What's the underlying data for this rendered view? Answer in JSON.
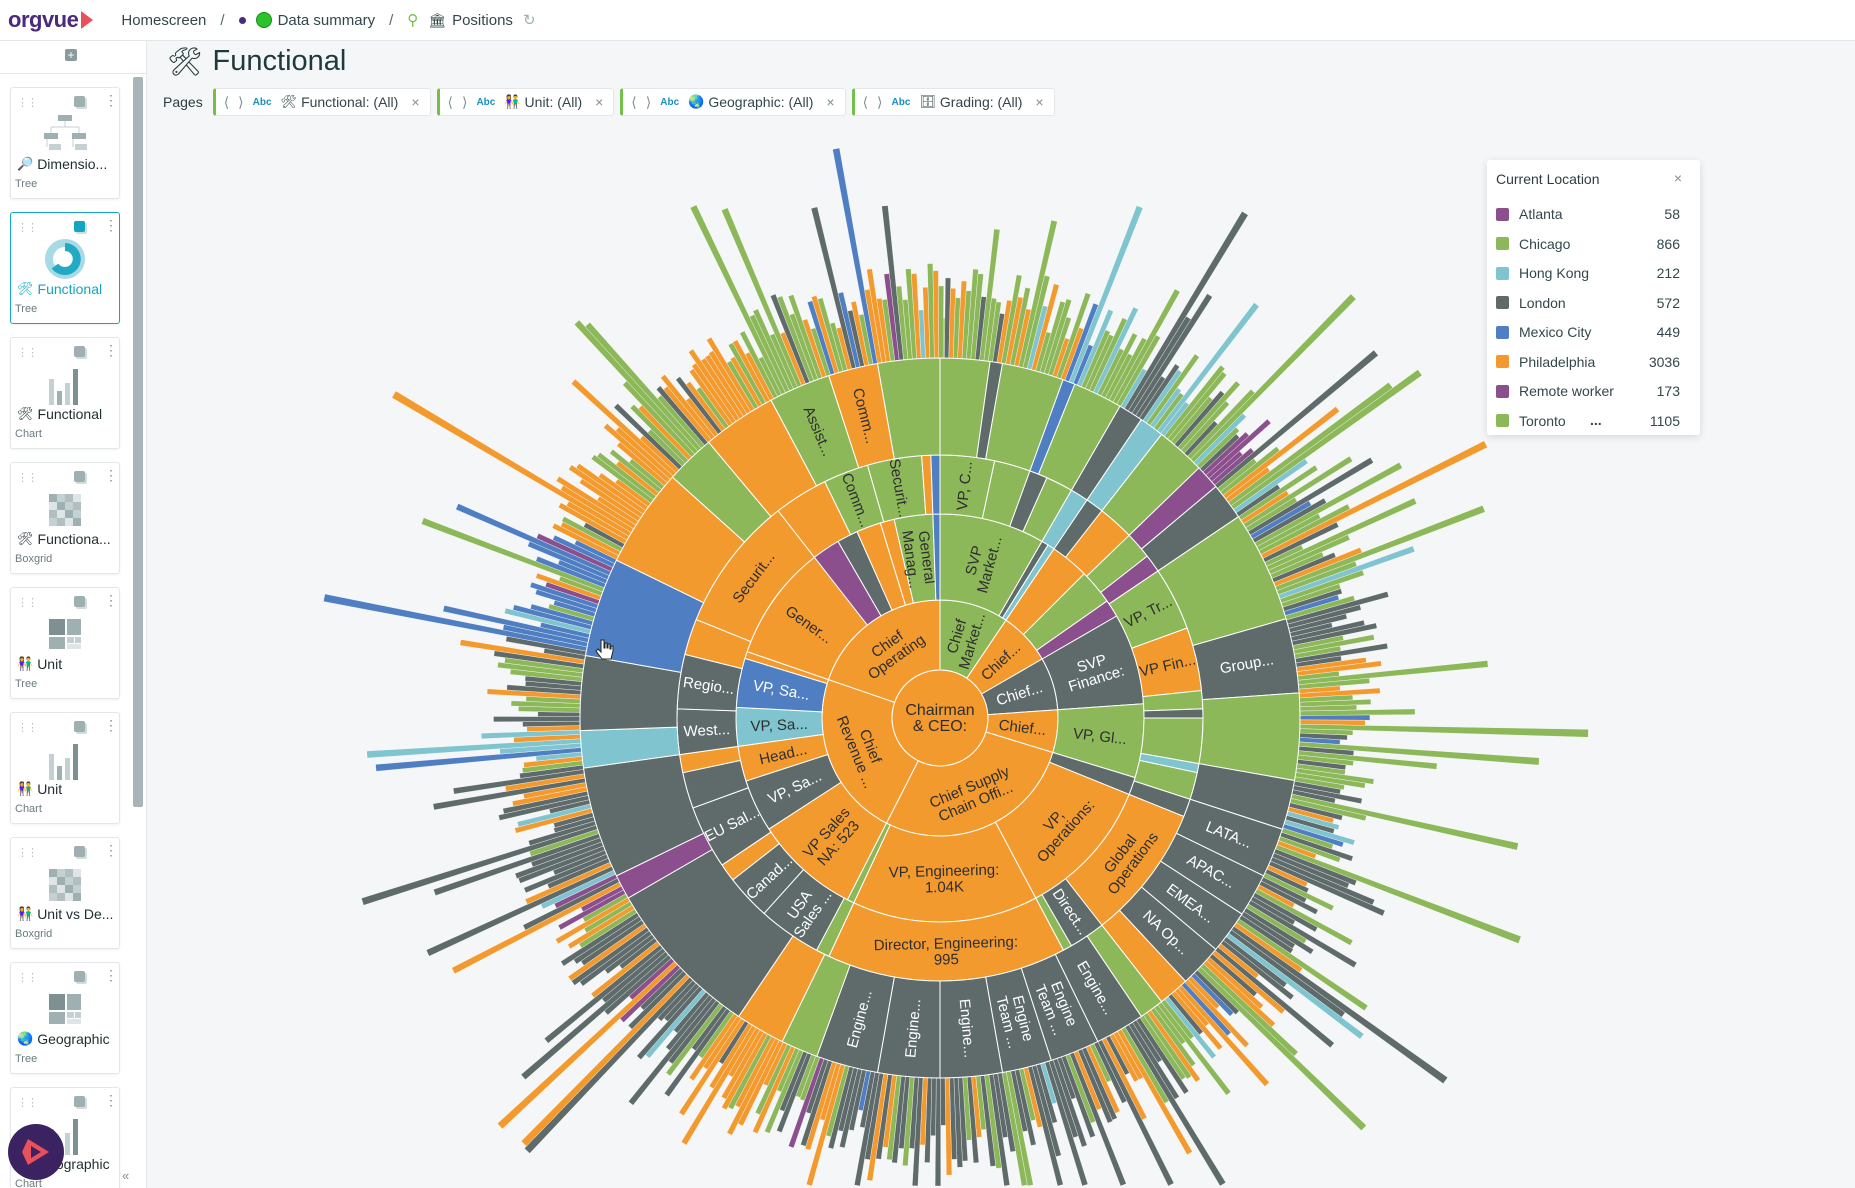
{
  "topbar": {
    "brand": "orgvue",
    "breadcrumbs": [
      "Homescreen",
      "Data summary",
      "Positions"
    ]
  },
  "sidebar": {
    "cards": [
      {
        "title": "Dimensio...",
        "type": "Tree",
        "icon": "magnifier-icon",
        "thumb": "tree",
        "selected": false
      },
      {
        "title": "Functional",
        "type": "Tree",
        "icon": "tools-icon",
        "thumb": "sunburst",
        "selected": true
      },
      {
        "title": "Functional",
        "type": "Chart",
        "icon": "tools-icon",
        "thumb": "bars",
        "selected": false
      },
      {
        "title": "Functiona...",
        "type": "Boxgrid",
        "icon": "tools-icon",
        "thumb": "boxgrid",
        "selected": false
      },
      {
        "title": "Unit",
        "type": "Tree",
        "icon": "people-icon",
        "thumb": "blocks",
        "selected": false
      },
      {
        "title": "Unit",
        "type": "Chart",
        "icon": "people-icon",
        "thumb": "bars",
        "selected": false
      },
      {
        "title": "Unit vs De...",
        "type": "Boxgrid",
        "icon": "people-icon",
        "thumb": "boxgrid",
        "selected": false
      },
      {
        "title": "Geographic",
        "type": "Tree",
        "icon": "globe-icon",
        "thumb": "blocks",
        "selected": false
      },
      {
        "title": "Geographic",
        "type": "Chart",
        "icon": "globe-icon",
        "thumb": "bars",
        "selected": false
      }
    ]
  },
  "page": {
    "title": "Functional",
    "pages_label": "Pages",
    "filters": [
      {
        "type_badge": "Abc",
        "label": "Functional: (All)",
        "icon": "tools-icon"
      },
      {
        "type_badge": "Abc",
        "label": "Unit: (All)",
        "icon": "people-icon"
      },
      {
        "type_badge": "Abc",
        "label": "Geographic: (All)",
        "icon": "globe-icon"
      },
      {
        "type_badge": "Abc",
        "label": "Grading: (All)",
        "icon": "grading-icon"
      }
    ]
  },
  "legend": {
    "title": "Current Location",
    "more": "...",
    "items": [
      {
        "name": "Atlanta",
        "count": "58",
        "color": "#8b4f8e"
      },
      {
        "name": "Chicago",
        "count": "866",
        "color": "#8db85a"
      },
      {
        "name": "Hong Kong",
        "count": "212",
        "color": "#80c4cf"
      },
      {
        "name": "London",
        "count": "572",
        "color": "#5f6b6b"
      },
      {
        "name": "Mexico City",
        "count": "449",
        "color": "#4f7fc2"
      },
      {
        "name": "Philadelphia",
        "count": "3036",
        "color": "#f39a2f"
      },
      {
        "name": "Remote worker",
        "count": "173",
        "color": "#8b4f8e"
      },
      {
        "name": "Toronto",
        "count": "1105",
        "color": "#8db85a"
      }
    ]
  },
  "chart_data": {
    "type": "sunburst",
    "color_by": "Current Location",
    "rings": [
      {
        "segments": [
          {
            "label": [
              "Chairman",
              "& CEO:"
            ],
            "loc": "Philadelphia",
            "share": 360
          }
        ]
      },
      {
        "segments": [
          {
            "label": [
              "Chief",
              "Market..."
            ],
            "loc": "Chicago",
            "share": 34
          },
          {
            "label": [
              "Chief..."
            ],
            "loc": "Philadelphia",
            "share": 26
          },
          {
            "label": [
              "Chief..."
            ],
            "loc": "London",
            "share": 26
          },
          {
            "label": [
              "Chief..."
            ],
            "loc": "Philadelphia",
            "share": 21
          },
          {
            "label": [
              "Chief Supply",
              "Chain Offi..."
            ],
            "loc": "Philadelphia",
            "share": 100
          },
          {
            "label": [
              "Chief",
              "Revenue ..."
            ],
            "loc": "Philadelphia",
            "share": 82
          },
          {
            "label": [
              "Chief",
              "Operating"
            ],
            "loc": "Philadelphia",
            "share": 71
          }
        ]
      },
      {
        "segments": [
          {
            "label": [
              "SVP",
              "Market..."
            ],
            "loc": "Chicago",
            "share": 30
          },
          {
            "label": [],
            "loc": "London",
            "share": 2
          },
          {
            "label": [],
            "loc": "Hong Kong",
            "share": 2
          },
          {
            "label": [],
            "loc": "Philadelphia",
            "share": 11
          },
          {
            "label": [],
            "loc": "Chicago",
            "share": 10
          },
          {
            "label": [],
            "loc": "Atlanta",
            "share": 5
          },
          {
            "label": [
              "SVP",
              "Finance:"
            ],
            "loc": "London",
            "share": 26
          },
          {
            "label": [
              "VP, Gl..."
            ],
            "loc": "Chicago",
            "share": 21
          },
          {
            "label": [],
            "loc": "London",
            "share": 5
          },
          {
            "label": [
              "VP,",
              "Operations:"
            ],
            "loc": "Philadelphia",
            "share": 40
          },
          {
            "label": [
              "VP, Engineering:",
              "1.04K"
            ],
            "loc": "Philadelphia",
            "share": 53
          },
          {
            "label": [],
            "loc": "Chicago",
            "share": 2
          },
          {
            "label": [
              "VP Sales",
              "NA: 523"
            ],
            "loc": "Philadelphia",
            "share": 30
          },
          {
            "label": [
              "VP, Sa..."
            ],
            "loc": "London",
            "share": 15
          },
          {
            "label": [
              "Head..."
            ],
            "loc": "Philadelphia",
            "share": 10
          },
          {
            "label": [
              "VP, Sa..."
            ],
            "loc": "Hong Kong",
            "share": 11
          },
          {
            "label": [
              "VP, Sa..."
            ],
            "loc": "Mexico City",
            "share": 14
          },
          {
            "label": [],
            "loc": "Philadelphia",
            "share": 2
          },
          {
            "label": [
              "Gener..."
            ],
            "loc": "Philadelphia",
            "share": 33
          },
          {
            "label": [],
            "loc": "Atlanta",
            "share": 8
          },
          {
            "label": [],
            "loc": "London",
            "share": 6
          },
          {
            "label": [],
            "loc": "Philadelphia",
            "share": 7
          },
          {
            "label": [],
            "loc": "Philadelphia",
            "share": 4
          },
          {
            "label": [
              "General",
              "Manag..."
            ],
            "loc": "Chicago",
            "share": 11
          },
          {
            "label": [],
            "loc": "Mexico City",
            "share": 2
          }
        ]
      },
      {
        "segments": [
          {
            "label": [
              "VP, C..."
            ],
            "loc": "Chicago",
            "share": 12
          },
          {
            "label": [],
            "loc": "Chicago",
            "share": 8
          },
          {
            "label": [],
            "loc": "London",
            "share": 4
          },
          {
            "label": [],
            "loc": "Chicago",
            "share": 6
          },
          {
            "label": [],
            "loc": "Hong Kong",
            "share": 4
          },
          {
            "label": [],
            "loc": "London",
            "share": 4
          },
          {
            "label": [],
            "loc": "Philadelphia",
            "share": 8
          },
          {
            "label": [],
            "loc": "Chicago",
            "share": 6
          },
          {
            "label": [],
            "loc": "Atlanta",
            "share": 4
          },
          {
            "label": [
              "VP, Tr..."
            ],
            "loc": "Chicago",
            "share": 14
          },
          {
            "label": [
              "VP Fin..."
            ],
            "loc": "Philadelphia",
            "share": 14
          },
          {
            "label": [],
            "loc": "Chicago",
            "share": 4
          },
          {
            "label": [],
            "loc": "London",
            "share": 2
          },
          {
            "label": [],
            "loc": "Chicago",
            "share": 10
          },
          {
            "label": [],
            "loc": "Hong Kong",
            "share": 2
          },
          {
            "label": [],
            "loc": "Chicago",
            "share": 6
          },
          {
            "label": [],
            "loc": "London",
            "share": 4
          },
          {
            "label": [
              "Global",
              "Operations"
            ],
            "loc": "Philadelphia",
            "share": 30
          },
          {
            "label": [
              "Direct..."
            ],
            "loc": "London",
            "share": 8
          },
          {
            "label": [],
            "loc": "Chicago",
            "share": 2
          },
          {
            "label": [
              "Director, Engineering:",
              "995"
            ],
            "loc": "Philadelphia",
            "share": 53
          },
          {
            "label": [],
            "loc": "Chicago",
            "share": 3
          },
          {
            "label": [
              "USA",
              "Sales ..."
            ],
            "loc": "London",
            "share": 14
          },
          {
            "label": [
              "Canad..."
            ],
            "loc": "London",
            "share": 10
          },
          {
            "label": [],
            "loc": "Philadelphia",
            "share": 4
          },
          {
            "label": [
              "EU Sal..."
            ],
            "loc": "London",
            "share": 14
          },
          {
            "label": [],
            "loc": "London",
            "share": 8
          },
          {
            "label": [],
            "loc": "Philadelphia",
            "share": 4
          },
          {
            "label": [
              "West..."
            ],
            "loc": "London",
            "share": 10
          },
          {
            "label": [
              "Regio..."
            ],
            "loc": "London",
            "share": 12
          },
          {
            "label": [],
            "loc": "Philadelphia",
            "share": 8
          },
          {
            "label": [
              "Securit..."
            ],
            "loc": "Philadelphia",
            "share": 30
          },
          {
            "label": [],
            "loc": "Philadelphia",
            "share": 12
          },
          {
            "label": [
              "Comm..."
            ],
            "loc": "Chicago",
            "share": 10
          },
          {
            "label": [
              "Securit..."
            ],
            "loc": "Chicago",
            "share": 12
          },
          {
            "label": [],
            "loc": "Philadelphia",
            "share": 2
          },
          {
            "label": [],
            "loc": "Mexico City",
            "share": 2
          }
        ]
      },
      {
        "segments": [
          {
            "label": [],
            "loc": "Chicago",
            "share": 8
          },
          {
            "label": [],
            "loc": "London",
            "share": 2
          },
          {
            "label": [],
            "loc": "Chicago",
            "share": 10
          },
          {
            "label": [],
            "loc": "Mexico City",
            "share": 2
          },
          {
            "label": [],
            "loc": "Chicago",
            "share": 8
          },
          {
            "label": [],
            "loc": "London",
            "share": 4
          },
          {
            "label": [],
            "loc": "Hong Kong",
            "share": 4
          },
          {
            "label": [],
            "loc": "Chicago",
            "share": 8
          },
          {
            "label": [],
            "loc": "Atlanta",
            "share": 4
          },
          {
            "label": [],
            "loc": "London",
            "share": 6
          },
          {
            "label": [],
            "loc": "Chicago",
            "share": 18
          },
          {
            "label": [
              "Group..."
            ],
            "loc": "London",
            "share": 12
          },
          {
            "label": [],
            "loc": "Chicago",
            "share": 14
          },
          {
            "label": [],
            "loc": "London",
            "share": 8
          },
          {
            "label": [
              "LATA..."
            ],
            "loc": "London",
            "share": 8
          },
          {
            "label": [
              "APAC..."
            ],
            "loc": "London",
            "share": 7
          },
          {
            "label": [
              "EMEA..."
            ],
            "loc": "London",
            "share": 7
          },
          {
            "label": [
              "NA Op..."
            ],
            "loc": "London",
            "share": 7
          },
          {
            "label": [],
            "loc": "Philadelphia",
            "share": 5
          },
          {
            "label": [],
            "loc": "Chicago",
            "share": 4
          },
          {
            "label": [
              "Engine..."
            ],
            "loc": "London",
            "share": 8
          },
          {
            "label": [
              "Engine",
              "Team ..."
            ],
            "loc": "London",
            "share": 8
          },
          {
            "label": [
              "Engine",
              "Team ..."
            ],
            "loc": "London",
            "share": 8
          },
          {
            "label": [
              "Engine..."
            ],
            "loc": "London",
            "share": 10
          },
          {
            "label": [
              "Engine..."
            ],
            "loc": "London",
            "share": 10
          },
          {
            "label": [
              "Engine..."
            ],
            "loc": "London",
            "share": 10
          },
          {
            "label": [],
            "loc": "Chicago",
            "share": 6
          },
          {
            "label": [],
            "loc": "Philadelphia",
            "share": 8
          },
          {
            "label": [],
            "loc": "London",
            "share": 26
          },
          {
            "label": [],
            "loc": "Atlanta",
            "share": 4
          },
          {
            "label": [],
            "loc": "London",
            "share": 18
          },
          {
            "label": [],
            "loc": "Hong Kong",
            "share": 6
          },
          {
            "label": [],
            "loc": "London",
            "share": 12
          },
          {
            "label": [],
            "loc": "Mexico City",
            "share": 16
          },
          {
            "label": [],
            "loc": "Philadelphia",
            "share": 16
          },
          {
            "label": [],
            "loc": "Chicago",
            "share": 8
          },
          {
            "label": [],
            "loc": "Philadelphia",
            "share": 12
          },
          {
            "label": [
              "Assist..."
            ],
            "loc": "Chicago",
            "share": 10
          },
          {
            "label": [
              "Comm..."
            ],
            "loc": "Philadelphia",
            "share": 8
          },
          {
            "label": [],
            "loc": "Chicago",
            "share": 10
          }
        ]
      }
    ]
  }
}
